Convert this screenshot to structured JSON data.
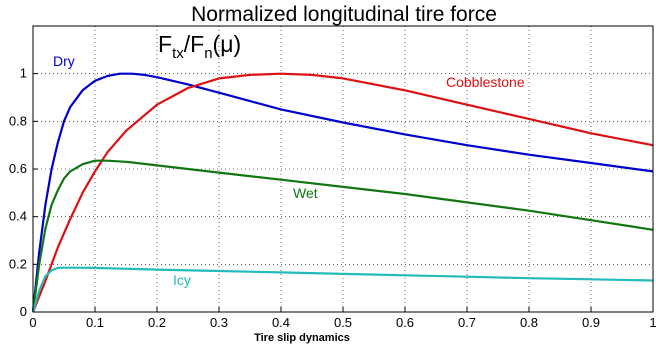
{
  "chart_data": {
    "type": "line",
    "title": "Normalized longitudinal tire force",
    "xlabel": "Tire slip dynamics",
    "ylabel": "",
    "annotation": {
      "F1": "F",
      "sub1": "tx",
      "slash": "/",
      "F2": "F",
      "sub2": "n",
      "mu": "(μ)"
    },
    "xlim": [
      0,
      1
    ],
    "ylim": [
      0,
      1.2
    ],
    "xticks": [
      0,
      0.1,
      0.2,
      0.3,
      0.4,
      0.5,
      0.6,
      0.7,
      0.8,
      0.9,
      1
    ],
    "xtick_labels": [
      "0",
      "0.1",
      "0.2",
      "0.3",
      "0.4",
      "0.5",
      "0.6",
      "0.7",
      "0.8",
      "0.9",
      "1"
    ],
    "yticks": [
      0,
      0.2,
      0.4,
      0.6,
      0.8,
      1
    ],
    "ytick_labels": [
      "0",
      "0.2",
      "0.4",
      "0.6",
      "0.8",
      "1"
    ],
    "grid": true,
    "series": [
      {
        "name": "Dry",
        "color": "#0000cc",
        "x": [
          0,
          0.01,
          0.02,
          0.03,
          0.04,
          0.05,
          0.06,
          0.08,
          0.1,
          0.12,
          0.14,
          0.16,
          0.18,
          0.2,
          0.25,
          0.3,
          0.35,
          0.4,
          0.5,
          0.6,
          0.7,
          0.8,
          0.9,
          1.0
        ],
        "y": [
          0,
          0.25,
          0.45,
          0.6,
          0.71,
          0.8,
          0.86,
          0.93,
          0.97,
          0.99,
          1.0,
          1.0,
          0.995,
          0.985,
          0.955,
          0.92,
          0.885,
          0.85,
          0.795,
          0.745,
          0.7,
          0.66,
          0.625,
          0.59
        ]
      },
      {
        "name": "Cobblestone",
        "color": "#dd1111",
        "x": [
          0,
          0.02,
          0.04,
          0.06,
          0.08,
          0.1,
          0.12,
          0.15,
          0.2,
          0.25,
          0.3,
          0.35,
          0.4,
          0.45,
          0.5,
          0.6,
          0.7,
          0.8,
          0.9,
          1.0
        ],
        "y": [
          0,
          0.13,
          0.27,
          0.39,
          0.5,
          0.59,
          0.67,
          0.76,
          0.87,
          0.94,
          0.98,
          0.995,
          1.0,
          0.995,
          0.98,
          0.93,
          0.87,
          0.81,
          0.75,
          0.7
        ]
      },
      {
        "name": "Wet",
        "color": "#117711",
        "x": [
          0,
          0.01,
          0.02,
          0.03,
          0.04,
          0.05,
          0.06,
          0.08,
          0.1,
          0.12,
          0.15,
          0.2,
          0.3,
          0.4,
          0.5,
          0.6,
          0.7,
          0.8,
          0.9,
          1.0
        ],
        "y": [
          0,
          0.2,
          0.35,
          0.45,
          0.51,
          0.56,
          0.59,
          0.62,
          0.635,
          0.635,
          0.63,
          0.615,
          0.585,
          0.555,
          0.525,
          0.495,
          0.46,
          0.425,
          0.385,
          0.345
        ]
      },
      {
        "name": "Icy",
        "color": "#22bbbb",
        "x": [
          0,
          0.01,
          0.02,
          0.03,
          0.04,
          0.05,
          0.07,
          0.1,
          0.2,
          0.3,
          0.4,
          0.5,
          0.6,
          0.7,
          0.8,
          0.9,
          1.0
        ],
        "y": [
          0,
          0.09,
          0.15,
          0.175,
          0.185,
          0.186,
          0.186,
          0.185,
          0.178,
          0.172,
          0.166,
          0.16,
          0.154,
          0.148,
          0.142,
          0.137,
          0.132
        ]
      }
    ]
  }
}
